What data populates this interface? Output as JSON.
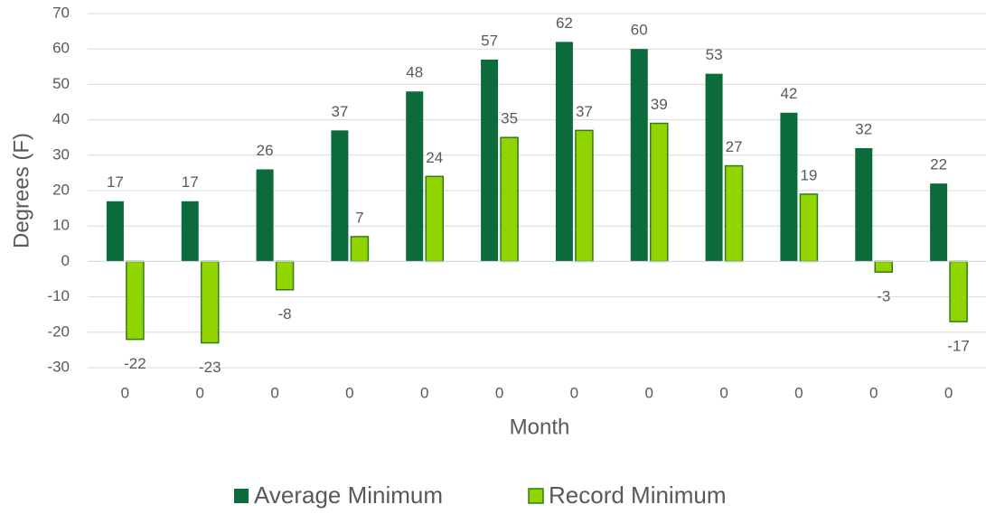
{
  "chart_data": {
    "type": "bar",
    "categories": [
      "0",
      "0",
      "0",
      "0",
      "0",
      "0",
      "0",
      "0",
      "0",
      "0",
      "0",
      "0"
    ],
    "series": [
      {
        "name": "Average Minimum",
        "color": "#0b6b3a",
        "values": [
          17,
          17,
          26,
          37,
          48,
          57,
          62,
          60,
          53,
          42,
          32,
          22
        ]
      },
      {
        "name": "Record Minimum",
        "color": "#92d400",
        "values": [
          -22,
          -23,
          -8,
          7,
          24,
          35,
          37,
          39,
          27,
          19,
          -3,
          -17
        ]
      }
    ],
    "ylim": [
      -30,
      70
    ],
    "yticks": [
      -30,
      -20,
      -10,
      0,
      10,
      20,
      30,
      40,
      50,
      60,
      70
    ],
    "xlabel": "Month",
    "ylabel": "Degrees (F)",
    "grid": true,
    "legend": "bottom"
  }
}
